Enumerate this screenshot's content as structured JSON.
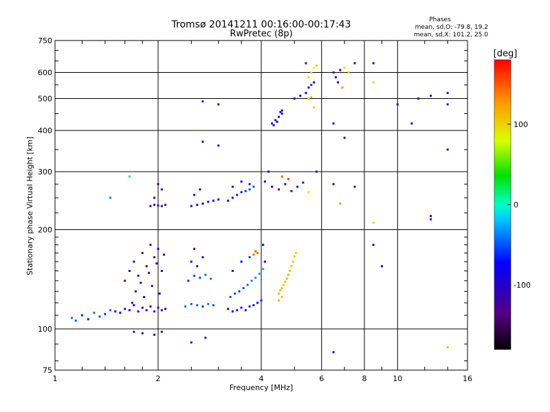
{
  "chart_data": {
    "type": "scatter",
    "title": "Tromsø 20141211 00:16:00-00:17:43",
    "subtitle": "RwPretec (8p)",
    "xlabel": "Frequency [MHz]",
    "ylabel": "Stationary phase Virtual Height [km]",
    "x_scale": "log",
    "y_scale": "log",
    "xlim": [
      1,
      16
    ],
    "ylim": [
      75,
      750
    ],
    "x_ticks": [
      "1",
      "2",
      "4",
      "6",
      "8",
      "10",
      "16"
    ],
    "y_ticks": [
      "75",
      "100",
      "200",
      "300",
      "400",
      "500",
      "600",
      "750"
    ],
    "x_gridlines": [
      2,
      4,
      6,
      8,
      10
    ],
    "y_gridlines": [
      100,
      200,
      300,
      400,
      500,
      600
    ],
    "grid": true,
    "legend": {
      "title": "Phases",
      "line1": "mean, sd,O: -79.8, 19.2",
      "line2": "mean, sd,X: 101.2, 25.0",
      "placement": "top-right"
    },
    "colorbar": {
      "label": "[deg]",
      "range": [
        -180,
        180
      ],
      "ticks": [
        "100",
        "0",
        "-100"
      ],
      "tick_values": [
        100,
        0,
        -100
      ]
    },
    "points": [
      [
        1.12,
        108,
        -40
      ],
      [
        1.15,
        106,
        -50
      ],
      [
        1.2,
        110,
        -60
      ],
      [
        1.25,
        107,
        -70
      ],
      [
        1.3,
        112,
        -40
      ],
      [
        1.35,
        109,
        -50
      ],
      [
        1.4,
        111,
        -60
      ],
      [
        1.45,
        114,
        -45
      ],
      [
        1.5,
        113,
        -80
      ],
      [
        1.55,
        112,
        -90
      ],
      [
        1.6,
        115,
        -100
      ],
      [
        1.65,
        114,
        -95
      ],
      [
        1.7,
        118,
        -90
      ],
      [
        1.75,
        113,
        -85
      ],
      [
        1.8,
        116,
        -95
      ],
      [
        1.85,
        114,
        -100
      ],
      [
        1.9,
        117,
        -90
      ],
      [
        1.95,
        113,
        -85
      ],
      [
        2.0,
        116,
        -95
      ],
      [
        2.05,
        114,
        -100
      ],
      [
        2.1,
        115,
        -90
      ],
      [
        1.6,
        140,
        -110
      ],
      [
        1.65,
        150,
        -100
      ],
      [
        1.7,
        160,
        -95
      ],
      [
        1.75,
        145,
        -90
      ],
      [
        1.8,
        170,
        -105
      ],
      [
        1.85,
        155,
        -100
      ],
      [
        1.9,
        180,
        -95
      ],
      [
        1.95,
        165,
        -90
      ],
      [
        2.0,
        175,
        -100
      ],
      [
        2.05,
        150,
        -85
      ],
      [
        1.72,
        130,
        -110
      ],
      [
        1.82,
        125,
        -100
      ],
      [
        1.92,
        135,
        -95
      ],
      [
        2.02,
        128,
        -90
      ],
      [
        1.68,
        120,
        -105
      ],
      [
        1.78,
        138,
        -115
      ],
      [
        1.88,
        148,
        -100
      ],
      [
        1.98,
        158,
        -95
      ],
      [
        2.08,
        168,
        -90
      ],
      [
        1.7,
        98,
        -100
      ],
      [
        1.8,
        97,
        -110
      ],
      [
        1.95,
        96,
        -90
      ],
      [
        2.05,
        98,
        -80
      ],
      [
        2.5,
        91,
        -100
      ],
      [
        2.75,
        94,
        -110
      ],
      [
        2.4,
        117,
        -40
      ],
      [
        2.5,
        119,
        -50
      ],
      [
        2.6,
        118,
        -45
      ],
      [
        2.7,
        117,
        -60
      ],
      [
        2.8,
        119,
        -40
      ],
      [
        2.9,
        118,
        -50
      ],
      [
        2.45,
        140,
        -60
      ],
      [
        2.55,
        145,
        -55
      ],
      [
        2.65,
        143,
        -50
      ],
      [
        2.75,
        146,
        -45
      ],
      [
        2.85,
        142,
        -40
      ],
      [
        2.5,
        160,
        -80
      ],
      [
        2.6,
        155,
        -90
      ],
      [
        2.7,
        165,
        -85
      ],
      [
        2.55,
        175,
        -100
      ],
      [
        3.2,
        115,
        -80
      ],
      [
        3.3,
        113,
        -90
      ],
      [
        3.4,
        114,
        -85
      ],
      [
        3.5,
        116,
        -95
      ],
      [
        3.6,
        114,
        -100
      ],
      [
        3.7,
        117,
        -80
      ],
      [
        3.8,
        118,
        -75
      ],
      [
        3.9,
        120,
        -70
      ],
      [
        4.0,
        122,
        -60
      ],
      [
        3.25,
        125,
        -50
      ],
      [
        3.35,
        128,
        -55
      ],
      [
        3.45,
        130,
        -60
      ],
      [
        3.55,
        133,
        -50
      ],
      [
        3.65,
        136,
        -45
      ],
      [
        3.75,
        140,
        -40
      ],
      [
        3.85,
        143,
        -35
      ],
      [
        3.95,
        147,
        -30
      ],
      [
        4.05,
        152,
        -25
      ],
      [
        3.3,
        150,
        -70
      ],
      [
        3.5,
        160,
        -80
      ],
      [
        3.7,
        165,
        -60
      ],
      [
        3.9,
        170,
        140
      ],
      [
        3.85,
        172,
        150
      ],
      [
        3.8,
        168,
        145
      ],
      [
        4.1,
        160,
        -90
      ],
      [
        4.05,
        180,
        -100
      ],
      [
        4.5,
        128,
        110
      ],
      [
        4.55,
        131,
        115
      ],
      [
        4.6,
        133,
        112
      ],
      [
        4.65,
        136,
        108
      ],
      [
        4.7,
        139,
        110
      ],
      [
        4.75,
        142,
        114
      ],
      [
        4.8,
        146,
        112
      ],
      [
        4.85,
        150,
        110
      ],
      [
        4.9,
        155,
        108
      ],
      [
        4.95,
        160,
        106
      ],
      [
        5.0,
        166,
        104
      ],
      [
        5.05,
        170,
        102
      ],
      [
        4.5,
        122,
        115
      ],
      [
        4.6,
        125,
        110
      ],
      [
        1.9,
        236,
        -100
      ],
      [
        1.95,
        238,
        -110
      ],
      [
        2.0,
        237,
        -105
      ],
      [
        2.05,
        236,
        -100
      ],
      [
        2.1,
        238,
        -95
      ],
      [
        1.95,
        250,
        -115
      ],
      [
        2.0,
        275,
        -120
      ],
      [
        2.05,
        265,
        -110
      ],
      [
        2.5,
        236,
        -90
      ],
      [
        2.6,
        238,
        -85
      ],
      [
        2.7,
        240,
        -80
      ],
      [
        2.8,
        243,
        -75
      ],
      [
        2.9,
        245,
        -70
      ],
      [
        3.0,
        247,
        -80
      ],
      [
        2.55,
        255,
        -100
      ],
      [
        2.65,
        265,
        -110
      ],
      [
        3.2,
        245,
        -80
      ],
      [
        3.3,
        250,
        -75
      ],
      [
        3.4,
        255,
        -70
      ],
      [
        3.5,
        260,
        -65
      ],
      [
        3.6,
        262,
        -60
      ],
      [
        3.7,
        265,
        -55
      ],
      [
        3.8,
        270,
        -50
      ],
      [
        3.3,
        270,
        -90
      ],
      [
        3.5,
        280,
        -100
      ],
      [
        3.7,
        275,
        -95
      ],
      [
        4.1,
        280,
        -90
      ],
      [
        4.3,
        270,
        -100
      ],
      [
        4.5,
        265,
        -110
      ],
      [
        4.7,
        275,
        -120
      ],
      [
        4.9,
        262,
        -130
      ],
      [
        5.1,
        270,
        -100
      ],
      [
        5.3,
        278,
        -90
      ],
      [
        4.2,
        300,
        -80
      ],
      [
        4.6,
        290,
        150
      ],
      [
        4.8,
        285,
        160
      ],
      [
        5.5,
        260,
        90
      ],
      [
        5.8,
        300,
        -100
      ],
      [
        6.5,
        275,
        -90
      ],
      [
        7.5,
        270,
        -120
      ],
      [
        6.8,
        240,
        130
      ],
      [
        4.3,
        420,
        -100
      ],
      [
        4.4,
        430,
        -95
      ],
      [
        4.5,
        440,
        -90
      ],
      [
        4.6,
        450,
        -85
      ],
      [
        4.35,
        415,
        -105
      ],
      [
        4.45,
        425,
        -100
      ],
      [
        4.55,
        455,
        -80
      ],
      [
        4.6,
        460,
        -75
      ],
      [
        5.0,
        500,
        -90
      ],
      [
        5.2,
        510,
        -80
      ],
      [
        5.4,
        520,
        -85
      ],
      [
        5.5,
        540,
        -70
      ],
      [
        5.6,
        550,
        -60
      ],
      [
        5.7,
        560,
        -80
      ],
      [
        5.5,
        500,
        100
      ],
      [
        5.6,
        505,
        110
      ],
      [
        5.7,
        470,
        100
      ],
      [
        5.5,
        580,
        100
      ],
      [
        5.6,
        600,
        90
      ],
      [
        5.7,
        620,
        80
      ],
      [
        5.8,
        630,
        100
      ],
      [
        5.4,
        640,
        -100
      ],
      [
        6.5,
        600,
        -90
      ],
      [
        6.6,
        580,
        -100
      ],
      [
        6.8,
        610,
        -110
      ],
      [
        7.0,
        620,
        90
      ],
      [
        7.2,
        600,
        110
      ],
      [
        6.7,
        560,
        -80
      ],
      [
        6.9,
        540,
        130
      ],
      [
        7.5,
        640,
        -90
      ],
      [
        8.5,
        640,
        -80
      ],
      [
        2.7,
        490,
        -110
      ],
      [
        3.0,
        480,
        -100
      ],
      [
        2.7,
        370,
        -90
      ],
      [
        3.0,
        360,
        -100
      ],
      [
        6.5,
        420,
        -100
      ],
      [
        7.0,
        380,
        -90
      ],
      [
        8.5,
        560,
        100
      ],
      [
        10,
        480,
        -100
      ],
      [
        11,
        420,
        -90
      ],
      [
        11.5,
        500,
        -100
      ],
      [
        12.5,
        510,
        -100
      ],
      [
        14,
        520,
        -110
      ],
      [
        14,
        480,
        -100
      ],
      [
        14,
        350,
        -100
      ],
      [
        12.5,
        220,
        -100
      ],
      [
        12.5,
        215,
        -110
      ],
      [
        8.5,
        210,
        100
      ],
      [
        8.5,
        180,
        -100
      ],
      [
        9,
        155,
        -90
      ],
      [
        6.5,
        85,
        -80
      ],
      [
        14,
        88,
        110
      ],
      [
        1.45,
        250,
        -40
      ],
      [
        1.65,
        290,
        20
      ]
    ]
  }
}
